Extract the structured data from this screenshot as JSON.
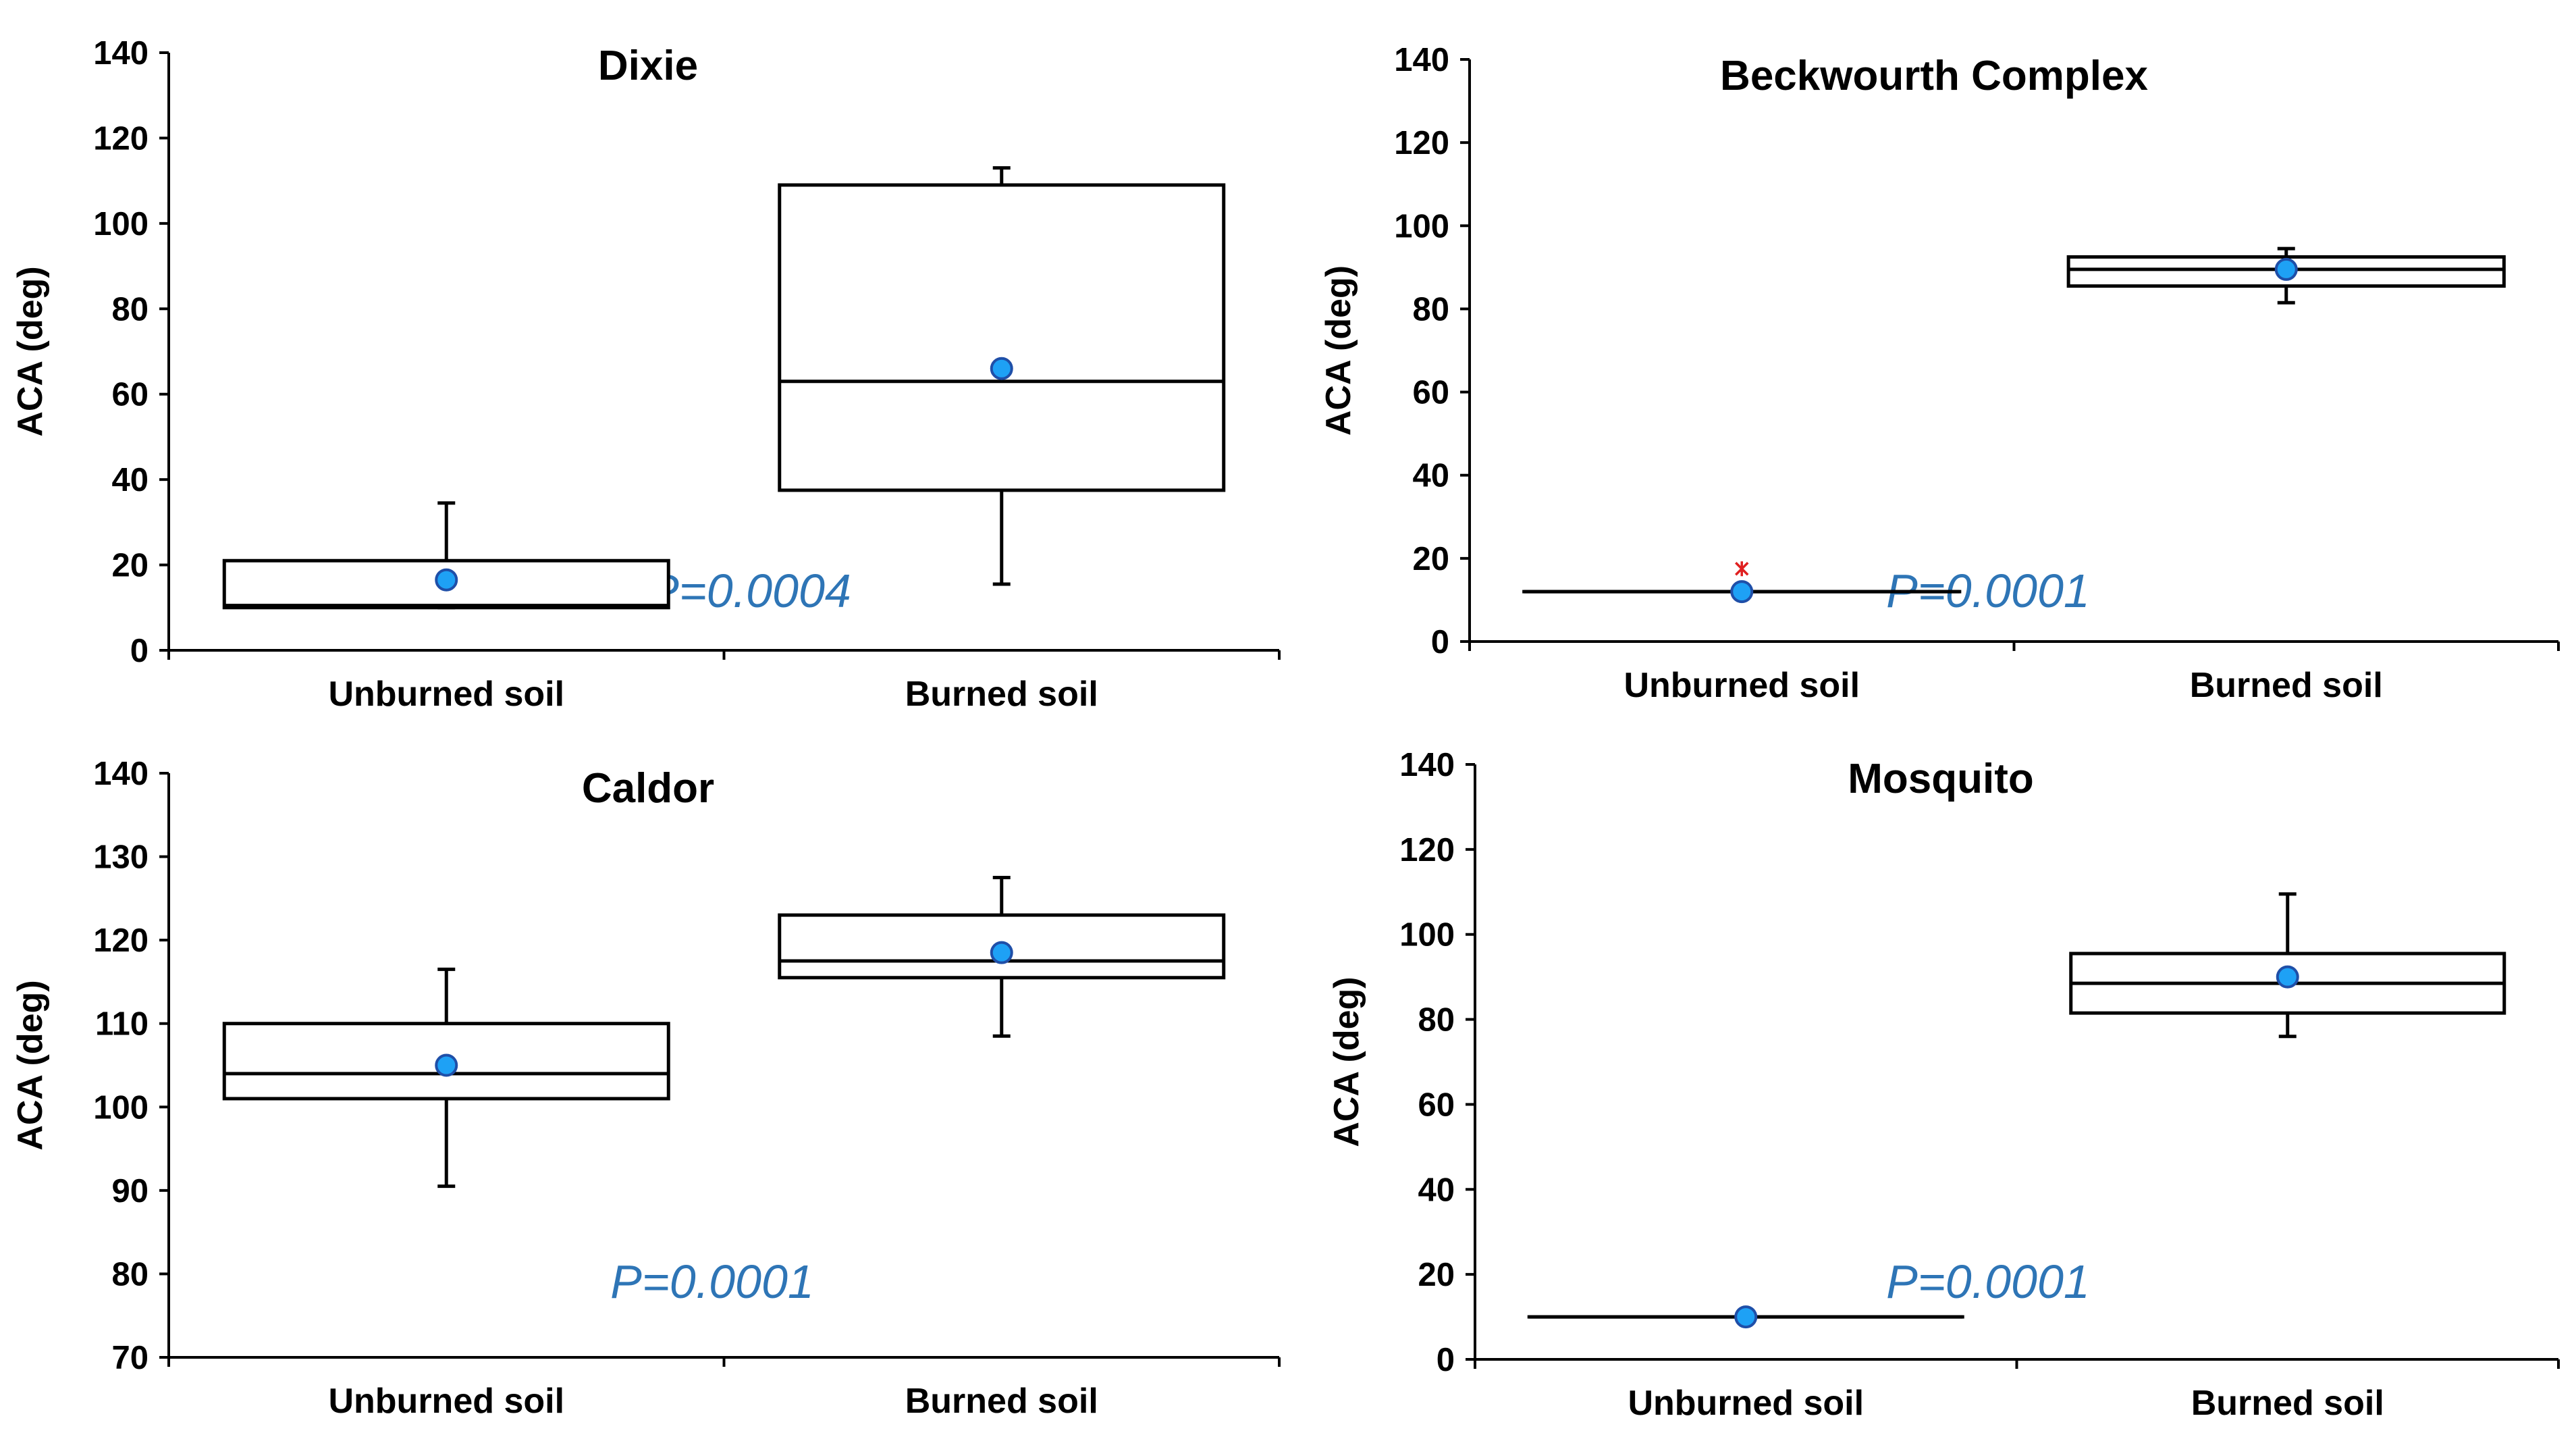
{
  "colors": {
    "p_value": "#2E75B6",
    "mean_fill": "#1EA1F5",
    "mean_stroke": "#1F4FA8",
    "outlier": "#E02020",
    "axis": "#000000"
  },
  "chart_data": [
    {
      "type": "box",
      "title": "Dixie",
      "ylabel": "ACA (deg)",
      "ylim": [
        0,
        140
      ],
      "yticks": [
        0,
        20,
        40,
        60,
        80,
        100,
        120,
        140
      ],
      "categories": [
        "Unburned soil",
        "Burned soil"
      ],
      "p_value": "P=0.0004",
      "boxes": [
        {
          "category": "Unburned soil",
          "whisker_low": 10,
          "q1": 10,
          "median": 10.5,
          "q3": 21,
          "whisker_high": 34.5,
          "mean": 16.5,
          "outliers": []
        },
        {
          "category": "Burned soil",
          "whisker_low": 15.5,
          "q1": 37.5,
          "median": 63,
          "q3": 109,
          "whisker_high": 113,
          "mean": 66,
          "outliers": []
        }
      ]
    },
    {
      "type": "box",
      "title": "Beckwourth Complex",
      "ylabel": "ACA (deg)",
      "ylim": [
        0,
        140
      ],
      "yticks": [
        0,
        20,
        40,
        60,
        80,
        100,
        120,
        140
      ],
      "categories": [
        "Unburned soil",
        "Burned soil"
      ],
      "p_value": "P=0.0001",
      "boxes": [
        {
          "category": "Unburned soil",
          "whisker_low": 12,
          "q1": 12,
          "median": 12,
          "q3": 12,
          "whisker_high": 12,
          "mean": 12,
          "outliers": [
            17.5
          ]
        },
        {
          "category": "Burned soil",
          "whisker_low": 81.5,
          "q1": 85.5,
          "median": 89.5,
          "q3": 92.5,
          "whisker_high": 94.5,
          "mean": 89.5,
          "outliers": []
        }
      ]
    },
    {
      "type": "box",
      "title": "Caldor",
      "ylabel": "ACA (deg)",
      "ylim": [
        70,
        140
      ],
      "yticks": [
        70,
        80,
        90,
        100,
        110,
        120,
        130,
        140
      ],
      "categories": [
        "Unburned soil",
        "Burned soil"
      ],
      "p_value": "P=0.0001",
      "boxes": [
        {
          "category": "Unburned soil",
          "whisker_low": 90.5,
          "q1": 101,
          "median": 104,
          "q3": 110,
          "whisker_high": 116.5,
          "mean": 105,
          "outliers": []
        },
        {
          "category": "Burned soil",
          "whisker_low": 108.5,
          "q1": 115.5,
          "median": 117.5,
          "q3": 123,
          "whisker_high": 127.5,
          "mean": 118.5,
          "outliers": []
        }
      ]
    },
    {
      "type": "box",
      "title": "Mosquito",
      "ylabel": "ACA (deg)",
      "ylim": [
        0,
        140
      ],
      "yticks": [
        0,
        20,
        40,
        60,
        80,
        100,
        120,
        140
      ],
      "categories": [
        "Unburned soil",
        "Burned soil"
      ],
      "p_value": "P=0.0001",
      "boxes": [
        {
          "category": "Unburned soil",
          "whisker_low": 10,
          "q1": 10,
          "median": 10,
          "q3": 10,
          "whisker_high": 10,
          "mean": 10,
          "outliers": []
        },
        {
          "category": "Burned soil",
          "whisker_low": 76,
          "q1": 81.5,
          "median": 88.5,
          "q3": 95.5,
          "whisker_high": 109.5,
          "mean": 90,
          "outliers": []
        }
      ]
    }
  ]
}
